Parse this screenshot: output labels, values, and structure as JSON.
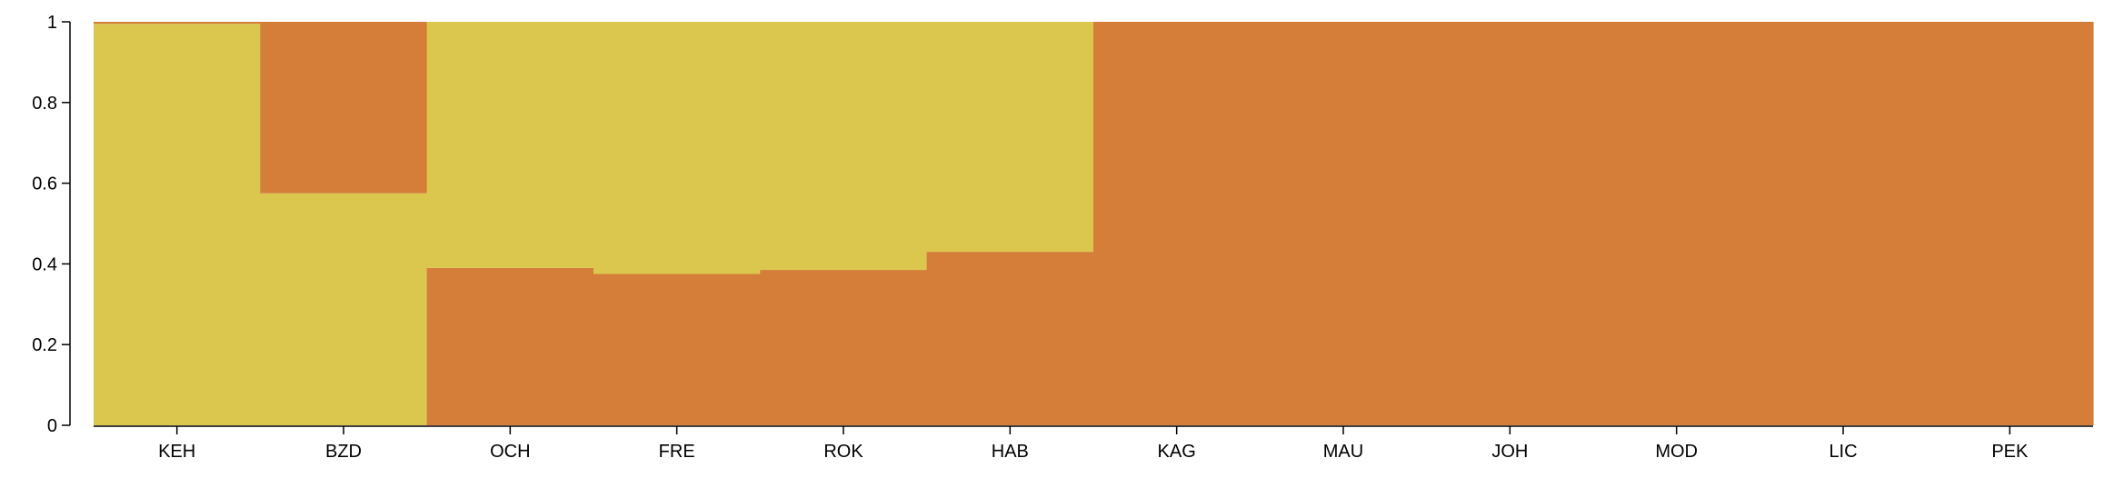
{
  "chart_data": {
    "type": "bar",
    "stacked": true,
    "normalized": true,
    "categories": [
      "KEH",
      "BZD",
      "OCH",
      "FRE",
      "ROK",
      "HAB",
      "KAG",
      "MAU",
      "JOH",
      "MOD",
      "LIC",
      "PEK"
    ],
    "series": [
      {
        "values": [
          0.995,
          0.575,
          0.61,
          0.625,
          0.615,
          0.57,
          0.0,
          0.0,
          0.0,
          0.0,
          0.0,
          0.0
        ]
      },
      {
        "values": [
          0.005,
          0.425,
          0.39,
          0.375,
          0.385,
          0.43,
          1.0,
          1.0,
          1.0,
          1.0,
          1.0,
          1.0
        ]
      }
    ],
    "series_draw_order": [
      "bottom_yellow_for_first_two",
      "see note"
    ],
    "colors": {
      "yellow": "#DBC74E",
      "orange": "#D47E3A"
    },
    "ylim": [
      0,
      1
    ],
    "yticks": [
      {
        "value": 0,
        "label": "0"
      },
      {
        "value": 0.2,
        "label": "0.2"
      },
      {
        "value": 0.4,
        "label": "0.4"
      },
      {
        "value": 0.6,
        "label": "0.6"
      },
      {
        "value": 0.8,
        "label": "0.8"
      },
      {
        "value": 1,
        "label": "1"
      }
    ],
    "title": "",
    "xlabel": "",
    "ylabel": "",
    "grid": false,
    "legend": "none"
  }
}
